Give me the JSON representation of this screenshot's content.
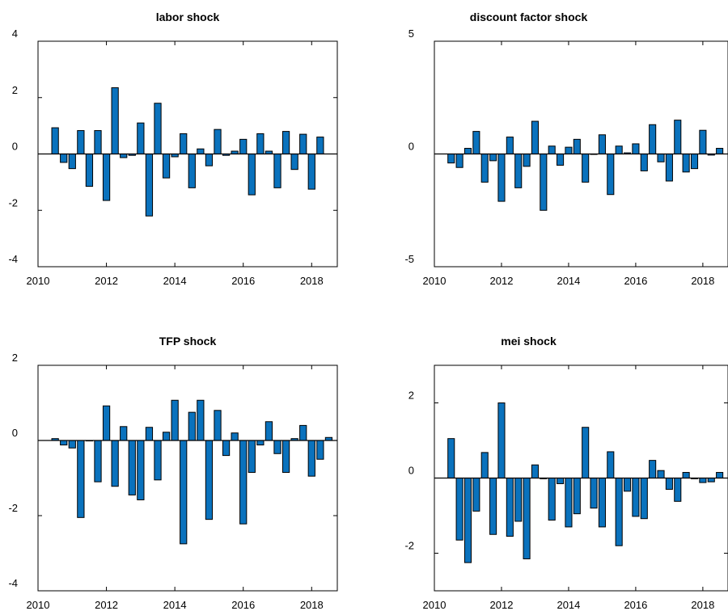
{
  "chart_data": [
    {
      "type": "bar",
      "title": "labor shock",
      "xlim": [
        2010,
        2018.75
      ],
      "ylim": [
        -4,
        4
      ],
      "xticks": [
        2010,
        2012,
        2014,
        2016,
        2018
      ],
      "yticks": [
        -4,
        -2,
        0,
        2,
        4
      ],
      "xtick_labels": [
        "2010",
        "2012",
        "2014",
        "2016",
        "2018"
      ],
      "ytick_labels": [
        "-4",
        "-2",
        "0",
        "2",
        "4"
      ],
      "x_start": 2010.5,
      "x_step": 0.25,
      "values": [
        0.93,
        -0.3,
        -0.52,
        0.83,
        -1.15,
        0.83,
        -1.65,
        2.35,
        -0.13,
        -0.05,
        1.1,
        -2.2,
        1.8,
        -0.85,
        -0.1,
        0.72,
        -1.2,
        0.18,
        -0.42,
        0.87,
        -0.05,
        0.1,
        0.52,
        -1.45,
        0.72,
        0.1,
        -1.2,
        0.8,
        -0.55,
        0.7,
        -1.25,
        0.6
      ]
    },
    {
      "type": "bar",
      "title": "discount factor shock",
      "xlim": [
        2010,
        2018.75
      ],
      "ylim": [
        -5,
        5
      ],
      "xticks": [
        2010,
        2012,
        2014,
        2016,
        2018
      ],
      "yticks": [
        -5,
        0,
        5
      ],
      "xtick_labels": [
        "2010",
        "2012",
        "2014",
        "2016",
        "2018"
      ],
      "ytick_labels": [
        "-5",
        "0",
        "5"
      ],
      "x_start": 2010.5,
      "x_step": 0.25,
      "values": [
        -0.4,
        -0.6,
        0.25,
        1.0,
        -1.25,
        -0.3,
        -2.1,
        0.75,
        -1.5,
        -0.55,
        1.45,
        -2.5,
        0.35,
        -0.5,
        0.3,
        0.65,
        -1.25,
        0.0,
        0.85,
        -1.8,
        0.35,
        0.05,
        0.45,
        -0.75,
        1.3,
        -0.35,
        -1.2,
        1.5,
        -0.8,
        -0.65,
        1.05,
        -0.05,
        0.25
      ]
    },
    {
      "type": "bar",
      "title": "TFP shock",
      "xlim": [
        2010,
        2018.75
      ],
      "ylim": [
        -4,
        2
      ],
      "xticks": [
        2010,
        2012,
        2014,
        2016,
        2018
      ],
      "yticks": [
        -4,
        -2,
        0,
        2
      ],
      "xtick_labels": [
        "2010",
        "2012",
        "2014",
        "2016",
        "2018"
      ],
      "ytick_labels": [
        "-4",
        "-2",
        "0",
        "2"
      ],
      "x_start": 2010.5,
      "x_step": 0.25,
      "values": [
        0.05,
        -0.12,
        -0.2,
        -2.05,
        0.0,
        -1.1,
        0.92,
        -1.22,
        0.37,
        -1.45,
        -1.58,
        0.35,
        -1.05,
        0.22,
        1.07,
        -2.75,
        0.75,
        1.07,
        -2.1,
        0.8,
        -0.4,
        0.2,
        -2.22,
        -0.85,
        -0.12,
        0.5,
        -0.35,
        -0.85,
        0.05,
        0.4,
        -0.95,
        -0.5,
        0.08
      ]
    },
    {
      "type": "bar",
      "title": "mei shock",
      "xlim": [
        2010,
        2018.75
      ],
      "ylim": [
        -3,
        3
      ],
      "xticks": [
        2010,
        2012,
        2014,
        2016,
        2018
      ],
      "yticks": [
        -2,
        0,
        2
      ],
      "xtick_labels": [
        "2010",
        "2012",
        "2014",
        "2016",
        "2018"
      ],
      "ytick_labels": [
        "-2",
        "0",
        "2"
      ],
      "x_start": 2010.5,
      "x_step": 0.25,
      "values": [
        1.05,
        -1.65,
        -2.25,
        -0.88,
        0.68,
        -1.5,
        2.0,
        -1.55,
        -1.15,
        -2.15,
        0.35,
        -0.02,
        -1.12,
        -0.15,
        -1.3,
        -0.95,
        1.35,
        -0.8,
        -1.3,
        0.7,
        -1.8,
        -0.35,
        -1.02,
        -1.08,
        0.47,
        0.2,
        -0.3,
        -0.62,
        0.15,
        -0.02,
        -0.12,
        -0.1,
        0.15
      ]
    }
  ]
}
